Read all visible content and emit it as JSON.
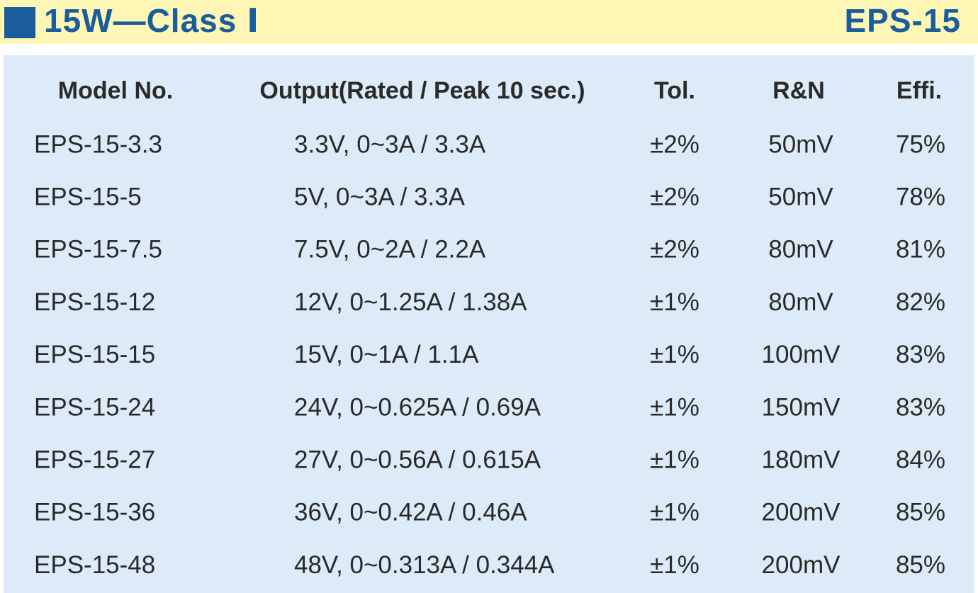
{
  "header": {
    "title": "15W—Class Ⅰ",
    "model": "EPS-15"
  },
  "table": {
    "columns": [
      "Model No.",
      "Output(Rated / Peak 10 sec.)",
      "Tol.",
      "R&N",
      "Effi."
    ],
    "rows": [
      [
        "EPS-15-3.3",
        "3.3V, 0~3A / 3.3A",
        "±2%",
        "50mV",
        "75%"
      ],
      [
        "EPS-15-5",
        "5V, 0~3A / 3.3A",
        "±2%",
        "50mV",
        "78%"
      ],
      [
        "EPS-15-7.5",
        "7.5V, 0~2A / 2.2A",
        "±2%",
        "80mV",
        "81%"
      ],
      [
        "EPS-15-12",
        "12V, 0~1.25A / 1.38A",
        "±1%",
        "80mV",
        "82%"
      ],
      [
        "EPS-15-15",
        "15V, 0~1A / 1.1A",
        "±1%",
        "100mV",
        "83%"
      ],
      [
        "EPS-15-24",
        "24V, 0~0.625A / 0.69A",
        "±1%",
        "150mV",
        "83%"
      ],
      [
        "EPS-15-27",
        "27V, 0~0.56A / 0.615A",
        "±1%",
        "180mV",
        "84%"
      ],
      [
        "EPS-15-36",
        "36V, 0~0.42A / 0.46A",
        "±1%",
        "200mV",
        "85%"
      ],
      [
        "EPS-15-48",
        "48V, 0~0.313A / 0.344A",
        "±1%",
        "200mV",
        "85%"
      ]
    ]
  }
}
